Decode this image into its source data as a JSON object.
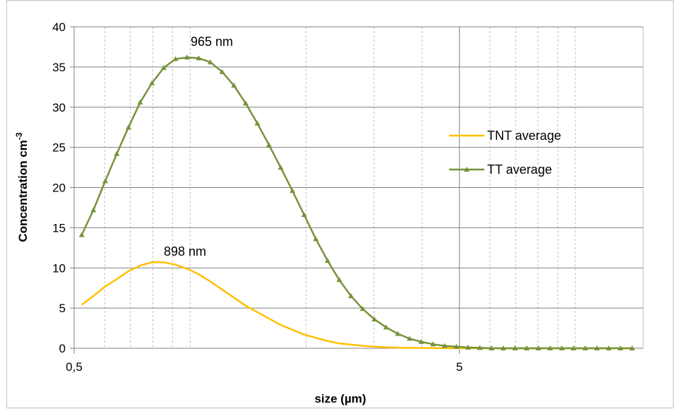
{
  "chart_data": {
    "type": "line",
    "xlabel": "size (µm)",
    "ylabel": "Concentration cm",
    "ylabel_sup": "-3",
    "xscale": "log",
    "xlim": [
      0.5,
      15
    ],
    "ylim": [
      0,
      40
    ],
    "x_tick_labels": [
      {
        "value": 0.5,
        "label": "0,5"
      },
      {
        "value": 5,
        "label": "5"
      }
    ],
    "y_ticks": [
      0,
      5,
      10,
      15,
      20,
      25,
      30,
      35,
      40
    ],
    "grid": true,
    "legend_position": "right",
    "colors": {
      "TNT average": "#ffc000",
      "TT average": "#77933c"
    },
    "series": [
      {
        "name": "TNT average",
        "marker": "none",
        "x": [
          0.523,
          0.561,
          0.602,
          0.645,
          0.692,
          0.742,
          0.796,
          0.854,
          0.916,
          0.982,
          1.053,
          1.129,
          1.211,
          1.299,
          1.393,
          1.494,
          1.602,
          1.718,
          1.843,
          1.977,
          2.12,
          2.274,
          2.439,
          2.616,
          2.805,
          3.009,
          3.227,
          3.461,
          3.712,
          3.981,
          4.27,
          4.579,
          4.911,
          5.268,
          5.649,
          6.059,
          6.499,
          6.97,
          7.475,
          8.017,
          8.599,
          9.222,
          9.891,
          10.608,
          11.378,
          12.203,
          13.088,
          14.037
        ],
        "y": [
          5.4,
          6.5,
          7.7,
          8.6,
          9.6,
          10.3,
          10.7,
          10.7,
          10.4,
          9.9,
          9.2,
          8.3,
          7.3,
          6.3,
          5.3,
          4.5,
          3.7,
          2.9,
          2.3,
          1.7,
          1.3,
          0.9,
          0.6,
          0.45,
          0.3,
          0.2,
          0.12,
          0.08,
          0.05,
          0.03,
          0.02,
          0.01,
          0.01,
          0.0,
          0.0,
          0.0,
          0.0,
          0.0,
          0.0,
          0.0,
          0.0,
          0.0,
          0.0,
          0.0,
          0.0,
          0.0,
          0.0,
          0.0
        ]
      },
      {
        "name": "TT average",
        "marker": "triangle",
        "x": [
          0.523,
          0.561,
          0.602,
          0.645,
          0.692,
          0.742,
          0.796,
          0.854,
          0.916,
          0.982,
          1.053,
          1.129,
          1.211,
          1.299,
          1.393,
          1.494,
          1.602,
          1.718,
          1.843,
          1.977,
          2.12,
          2.274,
          2.439,
          2.616,
          2.805,
          3.009,
          3.227,
          3.461,
          3.712,
          3.981,
          4.27,
          4.579,
          4.911,
          5.268,
          5.649,
          6.059,
          6.499,
          6.97,
          7.475,
          8.017,
          8.599,
          9.222,
          9.891,
          10.608,
          11.378,
          12.203,
          13.088,
          14.037
        ],
        "y": [
          14.1,
          17.2,
          20.8,
          24.2,
          27.5,
          30.6,
          33.0,
          34.9,
          36.0,
          36.2,
          36.1,
          35.6,
          34.4,
          32.7,
          30.5,
          28.0,
          25.3,
          22.5,
          19.6,
          16.6,
          13.6,
          10.9,
          8.5,
          6.5,
          4.9,
          3.6,
          2.6,
          1.8,
          1.2,
          0.8,
          0.5,
          0.3,
          0.2,
          0.1,
          0.05,
          0.0,
          0.0,
          0.0,
          0.0,
          0.0,
          0.0,
          0.0,
          0.0,
          0.0,
          0.0,
          0.0,
          0.0,
          0.0
        ]
      }
    ],
    "annotations": [
      {
        "text": "965 nm",
        "x": 0.965,
        "y": 36.2
      },
      {
        "text": "898 nm",
        "x": 0.898,
        "y": 10.7
      }
    ]
  }
}
